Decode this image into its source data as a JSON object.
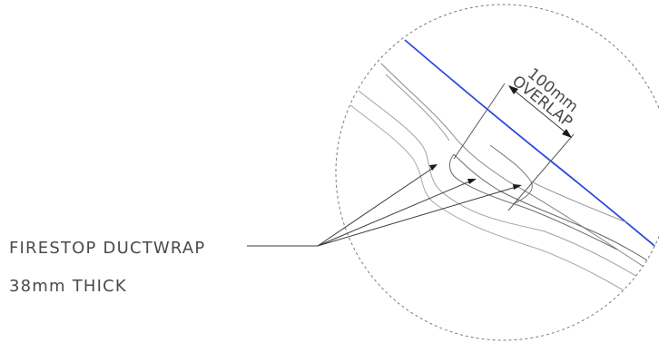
{
  "annotation": {
    "line1": "FIRESTOP DUCTWRAP",
    "line2": "38mm THICK"
  },
  "dimension": {
    "value": "100mm",
    "label": "OVERLAP"
  },
  "colors": {
    "outer_surface": "#2a4ae0",
    "linework": "#3a3a3a",
    "light_linework": "#a0a0a0",
    "detail_circle": "#7a7a7a"
  }
}
